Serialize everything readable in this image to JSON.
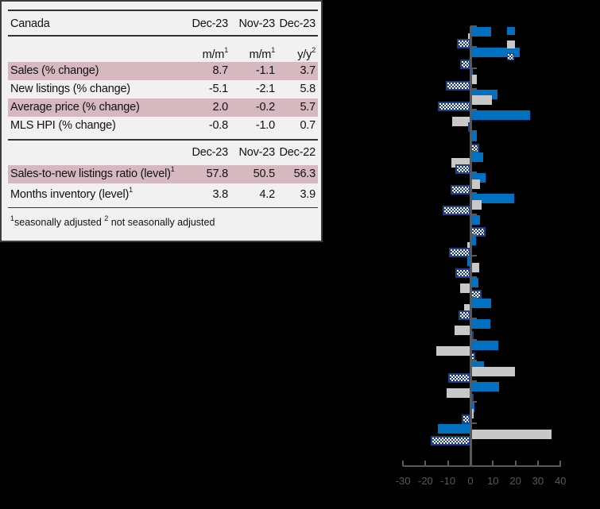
{
  "table": {
    "title": "Canada",
    "header_periods": [
      "Dec-23",
      "Nov-23",
      "Dec-23"
    ],
    "header_units": [
      {
        "text": "m/m",
        "sup": "1"
      },
      {
        "text": "m/m",
        "sup": "1"
      },
      {
        "text": "y/y",
        "sup": "2"
      }
    ],
    "rows": [
      {
        "label": "Sales (% change)",
        "values": [
          "8.7",
          "-1.1",
          "3.7"
        ],
        "shaded": true
      },
      {
        "label": "New listings (% change)",
        "values": [
          "-5.1",
          "-2.1",
          "5.8"
        ],
        "shaded": false
      },
      {
        "label": "Average price (% change)",
        "values": [
          "2.0",
          "-0.2",
          "5.7"
        ],
        "shaded": true
      },
      {
        "label": "MLS HPI (% change)",
        "values": [
          "-0.8",
          "-1.0",
          "0.7"
        ],
        "shaded": false
      }
    ],
    "level_header_periods": [
      "Dec-23",
      "Nov-23",
      "Dec-22"
    ],
    "level_rows": [
      {
        "label": "Sales-to-new listings ratio (level)",
        "sup": "1",
        "values": [
          "57.8",
          "50.5",
          "56.3"
        ],
        "shaded": true
      },
      {
        "label": "Months inventory (level)",
        "sup": "1",
        "values": [
          "3.8",
          "4.2",
          "3.9"
        ],
        "shaded": false
      }
    ],
    "footnote": {
      "sup1": "1",
      "text1": "seasonally adjusted ",
      "sup2": "2",
      "text2": " not seasonally adjusted"
    }
  },
  "colors": {
    "series_blue": "#0070c0",
    "series_grey": "#c8c8c8",
    "series_hatched": "#1f3f86",
    "row_shade": "#d6b9c0",
    "panel_bg": "#f1f1f1",
    "axis": "#595959"
  },
  "chart_data": {
    "type": "bar",
    "orientation": "horizontal",
    "title": "",
    "xlabel": "",
    "ylabel": "",
    "xlim": [
      -30,
      40
    ],
    "xticks": [
      -30,
      -20,
      -10,
      0,
      10,
      20,
      30,
      40
    ],
    "grid": false,
    "legend_position": "top-right",
    "categories": [
      "",
      "",
      "",
      "",
      "",
      "",
      "",
      "",
      "",
      "",
      "",
      "",
      "",
      "",
      "",
      "",
      "",
      "",
      "",
      ""
    ],
    "series": [
      {
        "name": "",
        "style": "solid-blue",
        "values": [
          9.2,
          22.0,
          1.0,
          12.0,
          26.5,
          3.0,
          5.5,
          6.7,
          19.4,
          4.2,
          2.5,
          -1.5,
          3.5,
          9.2,
          8.8,
          12.4,
          6.0,
          12.6,
          1.7,
          -14.6
        ]
      },
      {
        "name": "",
        "style": "solid-grey",
        "values": [
          -1.0,
          -0.5,
          3.0,
          9.5,
          -8.0,
          0.3,
          -8.4,
          4.2,
          5.0,
          0.5,
          -1.5,
          3.9,
          -4.6,
          -2.8,
          -7.0,
          -15.2,
          19.8,
          -10.5,
          1.4,
          36.2
        ]
      },
      {
        "name": "",
        "style": "hatched-navy",
        "values": [
          -6.0,
          -4.6,
          -11.0,
          -14.5,
          -1.0,
          4.0,
          -6.7,
          -8.9,
          -12.4,
          6.7,
          -9.5,
          -6.7,
          5.0,
          -5.3,
          0.7,
          2.1,
          -9.9,
          0.6,
          -3.9,
          -17.8
        ]
      }
    ]
  }
}
